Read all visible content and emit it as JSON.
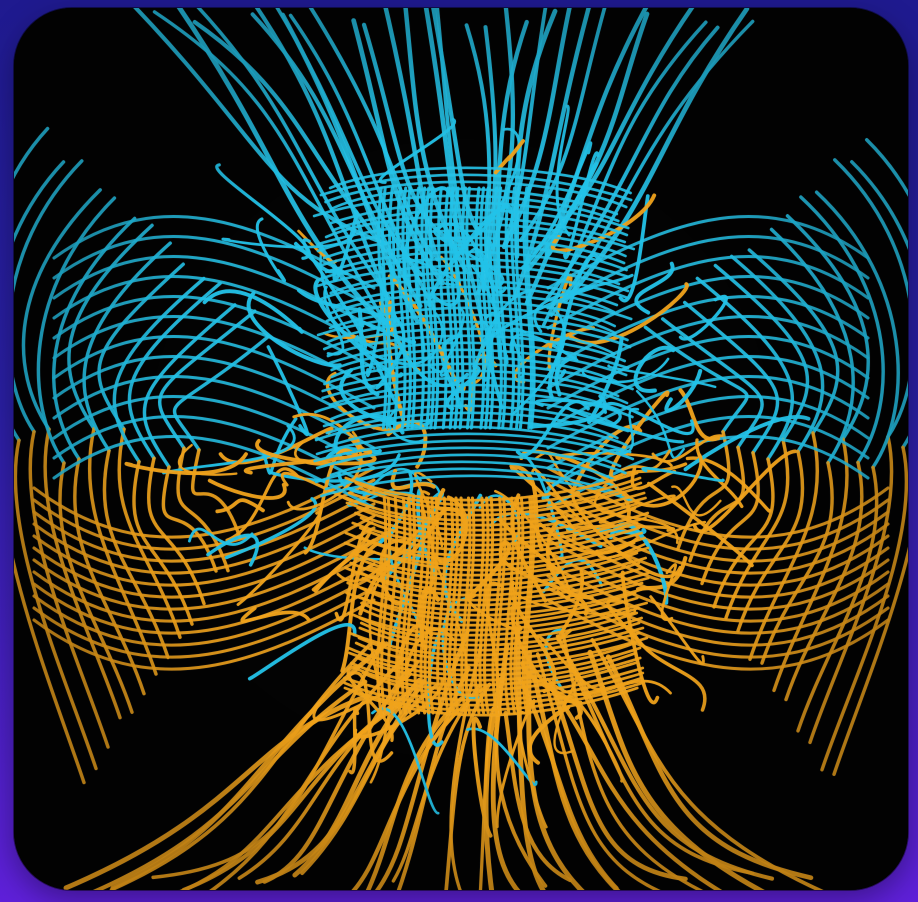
{
  "image": {
    "subject": "magnetic-field-lines",
    "colors": {
      "page_top": "#1f1a8f",
      "page_bottom": "#5f20d9",
      "background": "#030303",
      "field_blue": "#22c2e8",
      "field_orange": "#f0a21a"
    }
  }
}
